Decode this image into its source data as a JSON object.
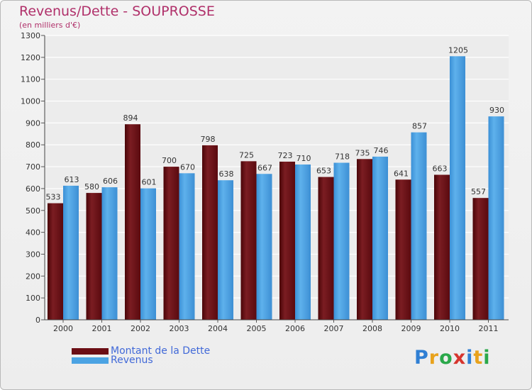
{
  "title": "Revenus/Dette - SOUPROSSE",
  "subtitle": "(en milliers d'€)",
  "legend": [
    {
      "label": "Montant de la Dette",
      "color": "#6b0d14"
    },
    {
      "label": "Revenus",
      "color": "#4ba3e3"
    }
  ],
  "logo": {
    "text": "Proxiti",
    "letters": [
      {
        "char": "P",
        "color": "#2f7fd4"
      },
      {
        "char": "r",
        "color": "#e8a21c"
      },
      {
        "char": "o",
        "color": "#2aa84a"
      },
      {
        "char": "x",
        "color": "#d6352e"
      },
      {
        "char": "i",
        "color": "#2f7fd4"
      },
      {
        "char": "t",
        "color": "#e8a21c"
      },
      {
        "char": "i",
        "color": "#2aa84a"
      }
    ]
  },
  "chart_data": {
    "type": "bar",
    "title": "Revenus/Dette - SOUPROSSE",
    "subtitle": "(en milliers d'€)",
    "categories": [
      "2000",
      "2001",
      "2002",
      "2003",
      "2004",
      "2005",
      "2006",
      "2007",
      "2008",
      "2009",
      "2010",
      "2011"
    ],
    "series": [
      {
        "name": "Montant de la Dette",
        "color": "#6b0d14",
        "values": [
          533,
          580,
          894,
          700,
          798,
          725,
          723,
          653,
          735,
          641,
          663,
          557
        ]
      },
      {
        "name": "Revenus",
        "color": "#4ba3e3",
        "values": [
          613,
          606,
          601,
          670,
          638,
          667,
          710,
          718,
          746,
          857,
          1205,
          930
        ]
      }
    ],
    "ylim": [
      0,
      1300
    ],
    "yticks": [
      0,
      100,
      200,
      300,
      400,
      500,
      600,
      700,
      800,
      900,
      1000,
      1100,
      1200,
      1300
    ],
    "grid": true,
    "legend_position": "bottom-left"
  }
}
